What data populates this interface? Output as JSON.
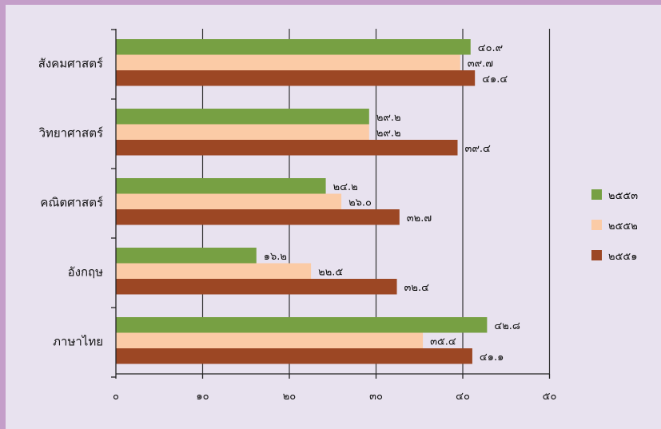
{
  "chart_data": {
    "type": "bar",
    "orientation": "horizontal",
    "categories": [
      "สังคมศาสตร์",
      "วิทยาศาสตร์",
      "คณิตศาสตร์",
      "อังกฤษ",
      "ภาษาไทย"
    ],
    "series": [
      {
        "name": "๒๕๕๓",
        "color": "#77a043",
        "values": [
          40.9,
          29.2,
          24.2,
          16.2,
          42.8
        ],
        "labels": [
          "๔๐.๙",
          "๒๙.๒",
          "๒๔.๒",
          "๑๖.๒",
          "๔๒.๘"
        ]
      },
      {
        "name": "๒๕๕๒",
        "color": "#fbcba6",
        "values": [
          39.7,
          29.2,
          26.0,
          22.5,
          35.4
        ],
        "labels": [
          "๓๙.๗",
          "๒๙.๒",
          "๒๖.๐",
          "๒๒.๕",
          "๓๕.๔"
        ]
      },
      {
        "name": "๒๕๕๑",
        "color": "#9c4724",
        "values": [
          41.4,
          39.4,
          32.7,
          32.4,
          41.1
        ],
        "labels": [
          "๔๑.๔",
          "๓๙.๔",
          "๓๒.๗",
          "๓๒.๔",
          "๔๑.๑"
        ]
      }
    ],
    "xlim": [
      0,
      50
    ],
    "ticks": [
      0,
      10,
      20,
      30,
      40,
      50
    ],
    "tick_labels": [
      "๐",
      "๑๐",
      "๒๐",
      "๓๐",
      "๔๐",
      "๕๐"
    ],
    "grid": true,
    "legend_position": "right",
    "title": "",
    "xlabel": "",
    "ylabel": ""
  }
}
